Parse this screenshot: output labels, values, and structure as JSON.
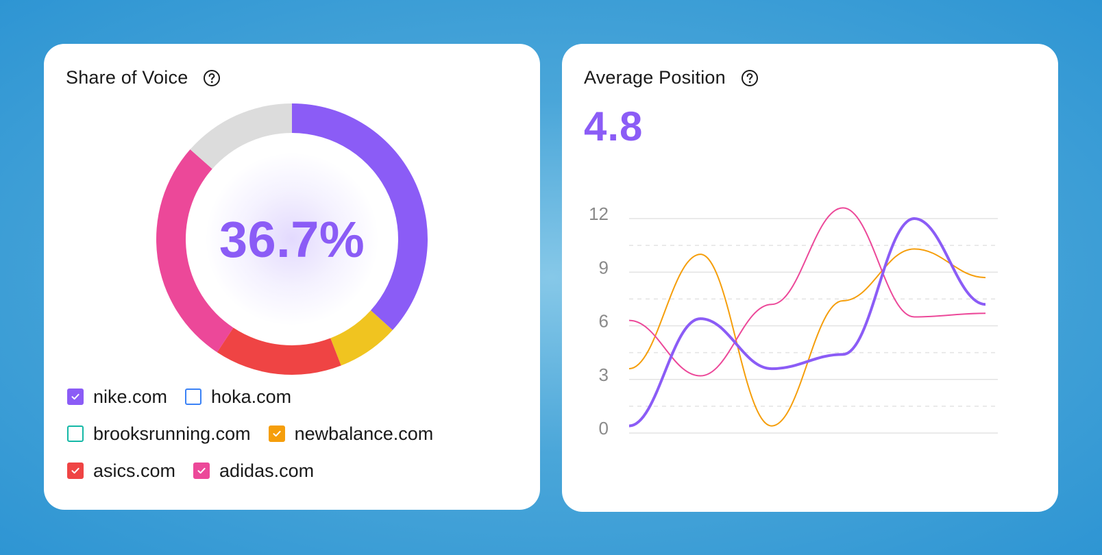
{
  "share_of_voice": {
    "title": "Share of Voice",
    "value": "36.7%",
    "segments": [
      {
        "name": "nike.com",
        "share": 36.7,
        "color": "#8b5cf6"
      },
      {
        "name": "newbalance.com",
        "share": 7.4,
        "color": "#f0c420"
      },
      {
        "name": "asics.com",
        "share": 15.2,
        "color": "#ef4444"
      },
      {
        "name": "adidas.com",
        "share": 27.2,
        "color": "#ec4899"
      },
      {
        "name": "other",
        "share": 13.5,
        "color": "#dcdcdc"
      }
    ],
    "legend": [
      [
        {
          "label": "nike.com",
          "checked": true,
          "color": "#8b5cf6"
        },
        {
          "label": "hoka.com",
          "checked": false,
          "color": "#3b82f6"
        }
      ],
      [
        {
          "label": "brooksrunning.com",
          "checked": false,
          "color": "#14b8a6"
        },
        {
          "label": "newbalance.com",
          "checked": true,
          "color": "#f59e0b"
        }
      ],
      [
        {
          "label": "asics.com",
          "checked": true,
          "color": "#ef4444"
        },
        {
          "label": "adidas.com",
          "checked": true,
          "color": "#ec4899"
        }
      ]
    ]
  },
  "average_position": {
    "title": "Average Position",
    "value": "4.8"
  },
  "chart_data": {
    "type": "line",
    "title": "Average Position",
    "x": [
      0,
      1,
      2,
      3,
      4,
      5
    ],
    "yticks": [
      "0",
      "3",
      "6",
      "9",
      "12"
    ],
    "ylim": [
      0,
      12
    ],
    "series": [
      {
        "name": "nike.com",
        "color": "#8b5cf6",
        "width": 4,
        "values": [
          0.4,
          6.4,
          3.6,
          4.4,
          12.0,
          7.2
        ]
      },
      {
        "name": "newbalance.com",
        "color": "#f59e0b",
        "width": 2,
        "values": [
          3.6,
          10.0,
          0.4,
          7.4,
          10.3,
          8.7
        ]
      },
      {
        "name": "adidas.com",
        "color": "#ec4899",
        "width": 2,
        "values": [
          6.3,
          3.2,
          7.2,
          12.6,
          6.5,
          6.7
        ]
      }
    ]
  }
}
